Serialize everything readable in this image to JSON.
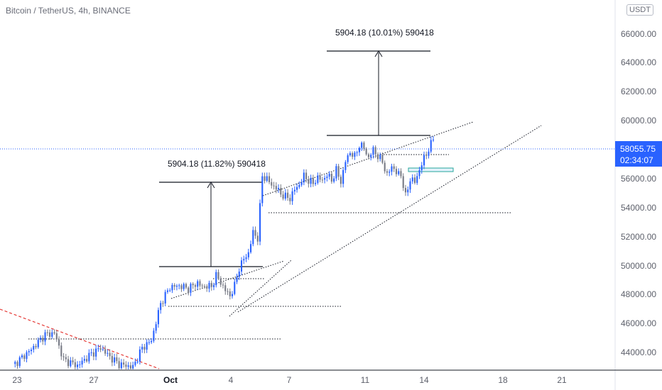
{
  "header": {
    "symbol_line": "Bitcoin / TetherUS, 4h, BINANCE",
    "currency_badge": "USDT"
  },
  "colors": {
    "up": "#2962ff",
    "down": "#787b86",
    "trend_red": "#e53935",
    "price_line": "#2962ff",
    "price_label_bg": "#2962ff"
  },
  "chart_data": {
    "type": "candlestick",
    "timeframe": "4h",
    "x_tick_labels": [
      "23",
      "27",
      "Oct",
      "4",
      "7",
      "11",
      "14",
      "18",
      "21"
    ],
    "y_tick_labels": [
      "44000.00",
      "46000.00",
      "48000.00",
      "50000.00",
      "52000.00",
      "54000.00",
      "56000.00",
      "58000.00",
      "60000.00",
      "62000.00",
      "64000.00",
      "66000.00"
    ],
    "ylim": [
      42500,
      67000
    ],
    "current_price": "58055.75",
    "countdown": "02:34:07",
    "annotations": [
      {
        "text": "5904.18 (11.82%) 590418"
      },
      {
        "text": "5904.18 (10.01%) 590418"
      }
    ],
    "price_sketch": [
      [
        0,
        42800
      ],
      [
        4,
        43900
      ],
      [
        7,
        44900
      ],
      [
        9,
        45000
      ],
      [
        11,
        43200
      ],
      [
        14,
        42800
      ],
      [
        17,
        43600
      ],
      [
        19,
        44000
      ],
      [
        21,
        43400
      ],
      [
        23,
        42900
      ],
      [
        26,
        42700
      ],
      [
        28,
        44000
      ],
      [
        30,
        44500
      ],
      [
        32,
        47000
      ],
      [
        34,
        48100
      ],
      [
        36,
        48200
      ],
      [
        38,
        48000
      ],
      [
        40,
        48400
      ],
      [
        41,
        48100
      ],
      [
        42,
        48200
      ],
      [
        43,
        48100
      ],
      [
        44,
        48900
      ],
      [
        46,
        47900
      ],
      [
        47,
        47500
      ],
      [
        48,
        48200
      ],
      [
        49,
        49400
      ],
      [
        50,
        50000
      ],
      [
        51,
        50400
      ],
      [
        52,
        51800
      ],
      [
        53,
        51400
      ],
      [
        54,
        55600
      ],
      [
        55,
        55400
      ],
      [
        56,
        55000
      ],
      [
        57,
        54800
      ],
      [
        58,
        54400
      ],
      [
        59,
        54200
      ],
      [
        60,
        54100
      ],
      [
        61,
        54700
      ],
      [
        62,
        55000
      ],
      [
        63,
        55600
      ],
      [
        64,
        55300
      ],
      [
        65,
        55100
      ],
      [
        66,
        55500
      ],
      [
        67,
        55300
      ],
      [
        68,
        55700
      ],
      [
        69,
        55300
      ],
      [
        70,
        56000
      ],
      [
        71,
        55200
      ],
      [
        72,
        56600
      ],
      [
        73,
        57200
      ],
      [
        74,
        56900
      ],
      [
        75,
        57700
      ],
      [
        76,
        57500
      ],
      [
        77,
        56800
      ],
      [
        78,
        57400
      ],
      [
        79,
        56900
      ],
      [
        80,
        56600
      ],
      [
        81,
        55600
      ],
      [
        82,
        56300
      ],
      [
        83,
        55800
      ],
      [
        84,
        55700
      ],
      [
        85,
        54200
      ],
      [
        86,
        55400
      ],
      [
        87,
        55200
      ],
      [
        88,
        56000
      ],
      [
        89,
        56800
      ],
      [
        90,
        57400
      ],
      [
        91,
        58056
      ]
    ]
  }
}
